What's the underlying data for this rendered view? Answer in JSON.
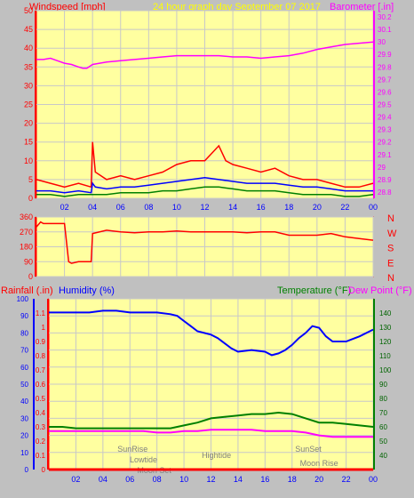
{
  "colors": {
    "page_bg": "#c0c0c0",
    "plot_bg": "#ffffa0",
    "grid": "#c8c8c8",
    "red": "#ff0000",
    "blue": "#0000ff",
    "green": "#008000",
    "magenta": "#ff00ff",
    "yellow": "#ffff00",
    "dark_green": "#006400",
    "gray_text": "#808080"
  },
  "chart_data": [
    {
      "type": "line",
      "title": "24 hour graph day   September 07 2017",
      "left_axis_label": "Windspeed [mph]",
      "right_axis_label": "Barometer [.in]",
      "x_ticks": [
        "02",
        "04",
        "06",
        "08",
        "10",
        "12",
        "14",
        "16",
        "18",
        "20",
        "22",
        "00"
      ],
      "x_range": [
        0,
        24
      ],
      "left_range": [
        0,
        50
      ],
      "left_ticks": [
        "0",
        "5",
        "10",
        "15",
        "20",
        "25",
        "30",
        "35",
        "40",
        "45",
        "50"
      ],
      "right_range": [
        28.75,
        30.25
      ],
      "right_ticks": [
        "28.8",
        "28.9",
        "29",
        "29.1",
        "29.2",
        "29.3",
        "29.4",
        "29.5",
        "29.6",
        "29.7",
        "29.8",
        "29.9",
        "30",
        "30.1",
        "30.2"
      ],
      "grid": true,
      "series": [
        {
          "color": "#ff00ff",
          "axis": "right",
          "x": [
            0,
            0.5,
            1,
            1.5,
            2,
            2.5,
            3,
            3.3,
            3.6,
            4,
            4.5,
            5,
            6,
            7,
            8,
            9,
            10,
            11,
            12,
            13,
            14,
            15,
            16,
            17,
            18,
            19,
            20,
            21,
            22,
            23,
            24
          ],
          "y": [
            29.86,
            29.86,
            29.87,
            29.85,
            29.83,
            29.82,
            29.8,
            29.79,
            29.79,
            29.82,
            29.83,
            29.84,
            29.85,
            29.86,
            29.87,
            29.88,
            29.89,
            29.89,
            29.89,
            29.89,
            29.88,
            29.88,
            29.87,
            29.88,
            29.89,
            29.91,
            29.94,
            29.96,
            29.98,
            29.99,
            30.0
          ]
        },
        {
          "color": "#ff0000",
          "axis": "left",
          "x": [
            0,
            1,
            2,
            3,
            3.9,
            4,
            4.2,
            5,
            6,
            7,
            8,
            9,
            10,
            11,
            12,
            12.5,
            13,
            13.5,
            14,
            15,
            16,
            17,
            18,
            19,
            20,
            21,
            22,
            23,
            24
          ],
          "y": [
            5,
            4,
            3,
            4,
            3,
            15,
            7,
            5,
            6,
            5,
            6,
            7,
            9,
            10,
            10,
            12,
            14,
            10,
            9,
            8,
            7,
            8,
            6,
            5,
            5,
            4,
            3,
            3,
            4
          ]
        },
        {
          "color": "#0000ff",
          "axis": "left",
          "x": [
            0,
            1,
            2,
            3,
            3.9,
            4,
            4.2,
            5,
            6,
            7,
            8,
            9,
            10,
            11,
            12,
            13,
            14,
            15,
            16,
            17,
            18,
            19,
            20,
            21,
            22,
            23,
            24
          ],
          "y": [
            2,
            2,
            1.5,
            2,
            1.5,
            4,
            3,
            2.5,
            3,
            3,
            3.5,
            4,
            4.5,
            5,
            5.5,
            5,
            4.5,
            4,
            4,
            4,
            3.5,
            3,
            3,
            2.5,
            2,
            2,
            2
          ]
        },
        {
          "color": "#008000",
          "axis": "left",
          "x": [
            0,
            1,
            2,
            3,
            4,
            5,
            6,
            7,
            8,
            9,
            10,
            11,
            12,
            13,
            14,
            15,
            16,
            17,
            18,
            19,
            20,
            21,
            22,
            23,
            24
          ],
          "y": [
            1,
            1,
            0.5,
            1,
            1,
            1,
            1.5,
            1.5,
            1.5,
            2,
            2,
            2.5,
            3,
            3,
            2.5,
            2,
            2,
            2,
            1.5,
            1,
            1,
            1,
            0.5,
            0.5,
            1
          ]
        }
      ]
    },
    {
      "type": "line",
      "title": "",
      "y_range": [
        0,
        360
      ],
      "y_ticks": [
        "0",
        "90",
        "180",
        "270",
        "360"
      ],
      "right_labels": [
        "N",
        "W",
        "S",
        "E",
        "N"
      ],
      "x_range": [
        0,
        24
      ],
      "grid": true,
      "series": [
        {
          "color": "#ff0000",
          "x": [
            0,
            0.3,
            0.5,
            1,
            2,
            2.3,
            2.5,
            3,
            3.5,
            3.9,
            4,
            5,
            6,
            7,
            8,
            9,
            10,
            11,
            12,
            13,
            14,
            15,
            16,
            17,
            18,
            19,
            20,
            21,
            22,
            23,
            24
          ],
          "y": [
            300,
            330,
            320,
            320,
            320,
            90,
            80,
            90,
            90,
            90,
            260,
            280,
            270,
            265,
            270,
            270,
            275,
            270,
            270,
            270,
            270,
            265,
            270,
            270,
            250,
            250,
            250,
            260,
            240,
            230,
            220
          ]
        }
      ]
    },
    {
      "type": "line",
      "title": "",
      "left_labels": [
        {
          "text": "Rainfall (.in)",
          "color": "#ff0000"
        },
        {
          "text": "Humidity (%)",
          "color": "#0000ff"
        }
      ],
      "right_labels": [
        {
          "text": "Temperature (°F)",
          "color": "#008000"
        },
        {
          "text": "Dew Point (°F)",
          "color": "#ff00ff"
        }
      ],
      "x_ticks": [
        "02",
        "04",
        "06",
        "08",
        "10",
        "12",
        "14",
        "16",
        "18",
        "20",
        "22",
        "00"
      ],
      "x_range": [
        0,
        24
      ],
      "humidity_range": [
        0,
        100
      ],
      "humidity_ticks": [
        "0",
        "10",
        "20",
        "30",
        "40",
        "50",
        "60",
        "70",
        "80",
        "90",
        "100"
      ],
      "rain_range": [
        0,
        1.2
      ],
      "rain_ticks": [
        "0",
        "0.1",
        "0.2",
        "0.3",
        "0.4",
        "0.5",
        "0.6",
        "0.7",
        "0.8",
        "0.9",
        "1",
        "1.1"
      ],
      "temp_range": [
        30,
        150
      ],
      "temp_ticks": [
        "40",
        "50",
        "60",
        "70",
        "80",
        "90",
        "100",
        "110",
        "120",
        "130",
        "140"
      ],
      "grid": true,
      "series": [
        {
          "name": "Humidity (%)",
          "color": "#0000ff",
          "axis": "humidity",
          "x": [
            0,
            1,
            2,
            3,
            4,
            5,
            6,
            7,
            8,
            9,
            9.5,
            10,
            10.5,
            11,
            11.5,
            12,
            12.5,
            13,
            13.5,
            14,
            15,
            16,
            16.5,
            17,
            17.5,
            18,
            18.5,
            19,
            19.5,
            20,
            20.5,
            21,
            22,
            23,
            24
          ],
          "y": [
            92,
            92,
            92,
            92,
            93,
            93,
            92,
            92,
            92,
            91,
            90,
            87,
            84,
            81,
            80,
            79,
            77,
            74,
            71,
            69,
            70,
            69,
            67,
            68,
            70,
            73,
            77,
            80,
            84,
            83,
            78,
            75,
            75,
            78,
            82
          ]
        },
        {
          "name": "Temperature (°F)",
          "color": "#008000",
          "axis": "temp",
          "x": [
            0,
            1,
            2,
            3,
            4,
            5,
            6,
            7,
            8,
            9,
            10,
            11,
            12,
            13,
            14,
            15,
            16,
            17,
            18,
            19,
            20,
            21,
            22,
            23,
            24
          ],
          "y": [
            60,
            60,
            59,
            59,
            59,
            59,
            59,
            59,
            59,
            59,
            61,
            63,
            66,
            67,
            68,
            69,
            69,
            70,
            69,
            66,
            63,
            63,
            62,
            61,
            60
          ]
        },
        {
          "name": "Dew Point (°F)",
          "color": "#ff00ff",
          "axis": "temp",
          "x": [
            0,
            1,
            2,
            3,
            4,
            5,
            6,
            7,
            8,
            9,
            10,
            11,
            12,
            13,
            14,
            15,
            16,
            17,
            18,
            19,
            19.5,
            20,
            21,
            22,
            23,
            24
          ],
          "y": [
            57,
            57,
            57,
            57,
            57,
            57,
            57,
            57,
            56,
            56,
            57,
            57,
            58,
            58,
            58,
            58,
            57,
            57,
            57,
            56,
            55,
            54,
            53,
            53,
            53,
            53
          ]
        },
        {
          "name": "Rainfall (.in)",
          "color": "#ff0000",
          "axis": "rain",
          "x": [
            0,
            24
          ],
          "y": [
            0,
            0
          ]
        }
      ],
      "annotations": [
        {
          "text": "SunRise",
          "x": 6.2
        },
        {
          "text": "Lowtide",
          "x": 7.0
        },
        {
          "text": "Moon Set",
          "x": 7.8
        },
        {
          "text": "Hightide",
          "x": 12.4
        },
        {
          "text": "SunSet",
          "x": 19.2
        },
        {
          "text": "Moon Rise",
          "x": 20.0
        }
      ]
    }
  ]
}
